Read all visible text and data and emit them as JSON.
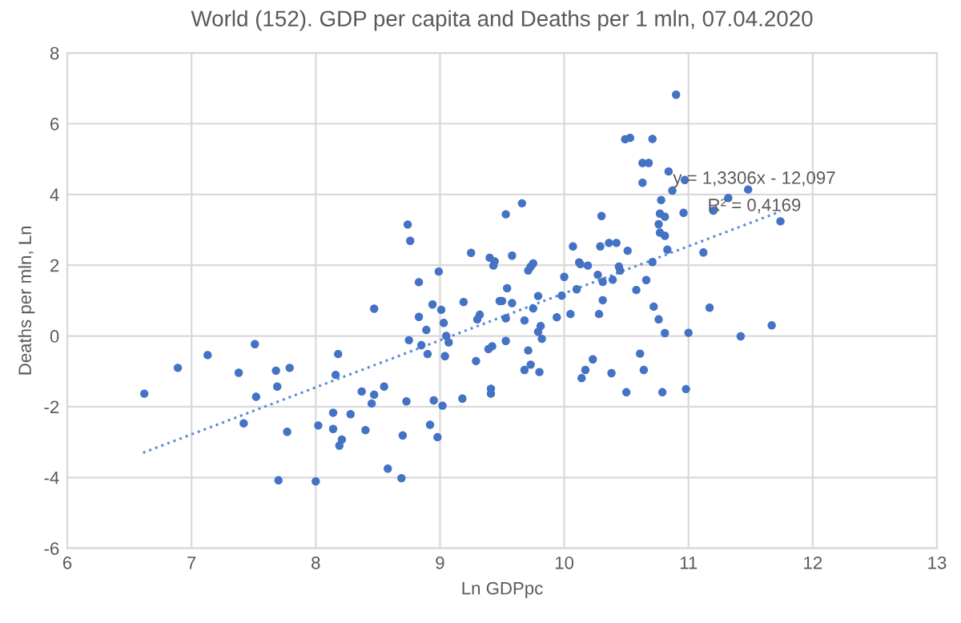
{
  "chart_data": {
    "type": "scatter",
    "title": "World (152). GDP per capita and Deaths per 1 mln, 07.04.2020",
    "xlabel": "Ln GDPpc",
    "ylabel": "Deaths per mln, Ln",
    "xlim": [
      6,
      13
    ],
    "xticks": [
      6,
      7,
      8,
      9,
      10,
      11,
      12,
      13
    ],
    "ylim": [
      -6,
      8
    ],
    "yticks": [
      -6,
      -4,
      -2,
      0,
      2,
      4,
      6,
      8
    ],
    "grid": true,
    "legend": false,
    "marker": "circle",
    "annotations": [
      "y = 1,3306x - 12,097",
      "R² = 0,4169"
    ],
    "series": [
      {
        "color": "#4472c4",
        "x": [
          6.62,
          6.89,
          7.13,
          7.51,
          7.38,
          7.68,
          7.79,
          7.69,
          7.52,
          7.42,
          7.77,
          7.7,
          8.0,
          8.02,
          8.14,
          8.14,
          8.28,
          8.21,
          8.19,
          8.4,
          8.16,
          8.18,
          8.47,
          8.37,
          8.47,
          8.45,
          8.55,
          8.74,
          8.76,
          8.83,
          8.99,
          8.83,
          8.94,
          9.01,
          8.89,
          8.75,
          8.85,
          9.03,
          9.05,
          9.07,
          8.9,
          9.04,
          9.25,
          9.19,
          9.4,
          9.44,
          9.43,
          9.53,
          9.66,
          9.58,
          9.54,
          9.48,
          9.5,
          9.58,
          9.3,
          9.32,
          9.53,
          9.68,
          9.71,
          9.73,
          9.75,
          9.79,
          9.75,
          9.81,
          9.79,
          9.82,
          9.53,
          9.42,
          9.39,
          9.29,
          9.71,
          9.73,
          9.68,
          9.8,
          9.41,
          9.41,
          9.18,
          9.02,
          8.95,
          8.73,
          9.94,
          9.98,
          10.0,
          10.07,
          10.12,
          10.13,
          10.19,
          10.29,
          10.3,
          10.36,
          10.42,
          10.51,
          10.44,
          10.45,
          10.27,
          10.31,
          10.39,
          10.1,
          10.05,
          10.31,
          10.28,
          10.23,
          10.17,
          10.14,
          10.38,
          10.5,
          10.61,
          10.64,
          10.79,
          10.98,
          10.58,
          10.66,
          10.71,
          10.72,
          10.76,
          10.81,
          11.0,
          10.63,
          10.68,
          10.63,
          10.84,
          10.87,
          10.97,
          10.78,
          10.77,
          10.81,
          10.96,
          10.76,
          10.77,
          10.81,
          10.83,
          10.9,
          10.49,
          10.53,
          10.71,
          11.2,
          11.32,
          11.48,
          11.74,
          11.12,
          11.17,
          11.42,
          11.67,
          8.7,
          8.58,
          8.69,
          8.92,
          8.98
        ],
        "values": [
          -1.63,
          -0.9,
          -0.54,
          -0.23,
          -1.04,
          -0.98,
          -0.9,
          -1.43,
          -1.72,
          -2.47,
          -2.71,
          -4.08,
          -4.11,
          -2.53,
          -2.17,
          -2.63,
          -2.21,
          -2.93,
          -3.1,
          -2.66,
          -1.1,
          -0.51,
          0.77,
          -1.57,
          -1.66,
          -1.91,
          -1.43,
          3.15,
          2.69,
          1.52,
          1.82,
          0.54,
          0.89,
          0.74,
          0.17,
          -0.12,
          -0.26,
          0.37,
          0.0,
          -0.18,
          -0.51,
          -0.57,
          2.35,
          0.96,
          2.21,
          2.11,
          1.99,
          3.44,
          3.75,
          2.27,
          1.35,
          0.99,
          0.99,
          0.93,
          0.47,
          0.6,
          0.5,
          0.44,
          1.85,
          1.96,
          2.05,
          1.13,
          0.78,
          0.28,
          0.12,
          -0.08,
          -0.14,
          -0.29,
          -0.37,
          -0.71,
          -0.41,
          -0.81,
          -0.96,
          -1.02,
          -1.49,
          -1.63,
          -1.77,
          -1.97,
          -1.82,
          -1.85,
          0.53,
          1.14,
          1.67,
          2.53,
          2.08,
          2.03,
          1.99,
          2.53,
          3.39,
          2.63,
          2.63,
          2.41,
          1.96,
          1.85,
          1.73,
          1.53,
          1.59,
          1.32,
          0.62,
          1.01,
          0.62,
          -0.66,
          -0.96,
          -1.19,
          -1.05,
          -1.59,
          -0.5,
          -0.96,
          -1.59,
          -1.5,
          1.3,
          1.58,
          2.09,
          0.83,
          0.47,
          0.08,
          0.09,
          4.89,
          4.89,
          4.33,
          4.65,
          4.11,
          4.41,
          3.84,
          3.46,
          3.37,
          3.48,
          3.16,
          2.92,
          2.83,
          2.44,
          6.82,
          5.56,
          5.6,
          5.57,
          3.54,
          3.9,
          4.14,
          3.24,
          2.36,
          0.8,
          -0.01,
          0.3,
          -2.81,
          -3.75,
          -4.02,
          -2.51,
          -2.86
        ]
      },
      {
        "type": "line",
        "color": "#5b8bd6",
        "line_style": "dotted",
        "marker": "none",
        "x": [
          6.61,
          11.74
        ],
        "values": [
          -3.3,
          3.52
        ]
      }
    ]
  }
}
